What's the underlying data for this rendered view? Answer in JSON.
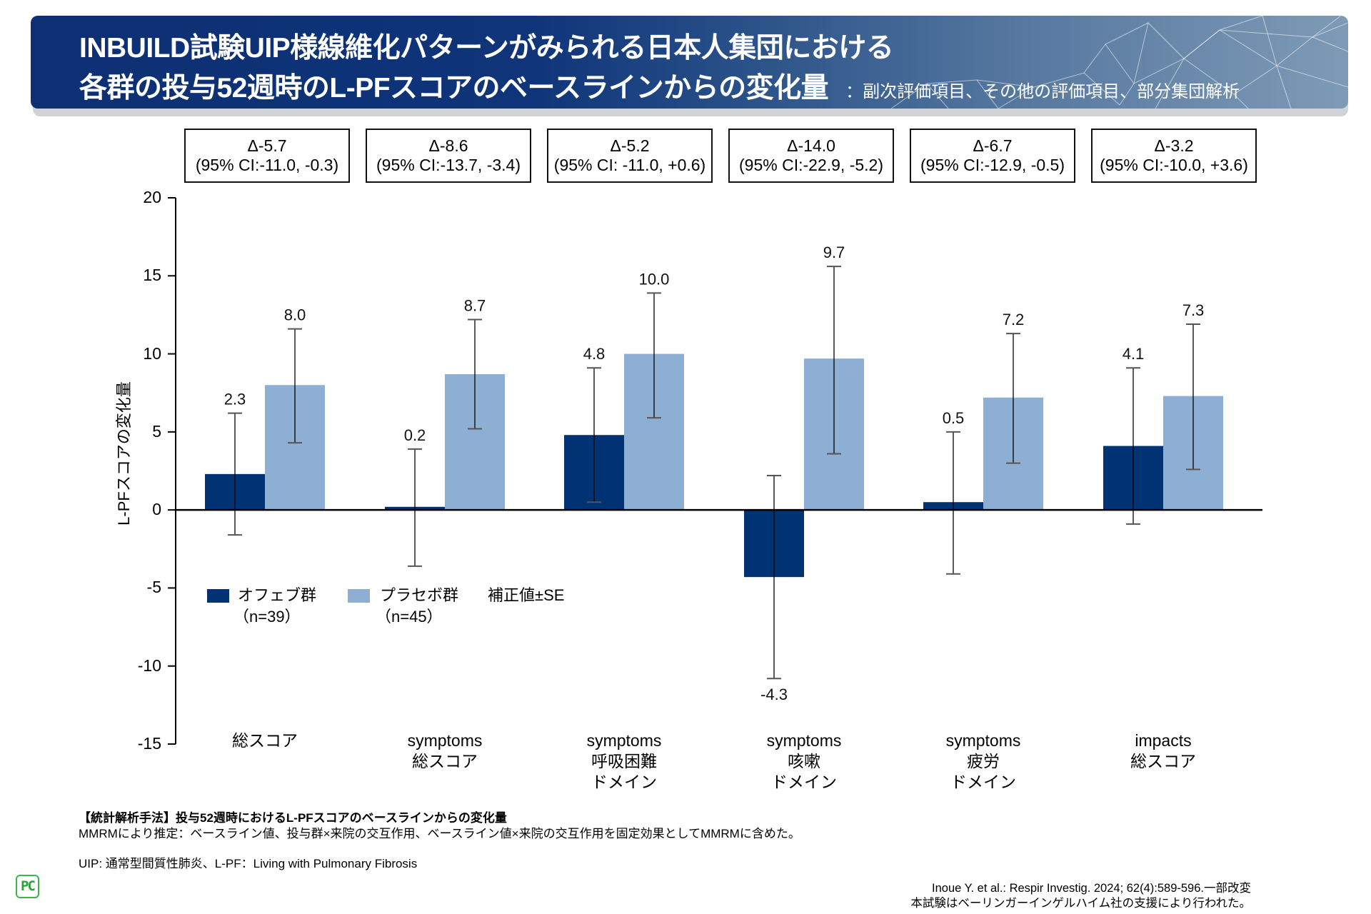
{
  "header": {
    "title_line1": "INBUILD試験UIP様線維化パターンがみられる日本人集団における",
    "title_line2": "各群の投与52週時のL-PFスコアのベースラインからの変化量",
    "subtitle": "：副次評価項目、その他の評価項目、部分集団解析"
  },
  "colors": {
    "banner_dark": "#0d2f73",
    "ofev": "#003274",
    "placebo": "#8eafd4",
    "logo_green": "#3cb44a"
  },
  "deltas": [
    {
      "delta": "Δ-5.7",
      "ci": "(95% CI:-11.0, -0.3)"
    },
    {
      "delta": "Δ-8.6",
      "ci": "(95% CI:-13.7, -3.4)"
    },
    {
      "delta": "Δ-5.2",
      "ci": "(95% CI: -11.0, +0.6)"
    },
    {
      "delta": "Δ-14.0",
      "ci": "(95% CI:-22.9, -5.2)"
    },
    {
      "delta": "Δ-6.7",
      "ci": "(95% CI:-12.9, -0.5)"
    },
    {
      "delta": "Δ-3.2",
      "ci": "(95% CI:-10.0, +3.6)"
    }
  ],
  "chart_data": {
    "type": "bar",
    "title": "",
    "xlabel": "",
    "ylabel": "L-PFスコアの変化量",
    "ylim": [
      -15,
      20
    ],
    "yticks": [
      20,
      15,
      10,
      5,
      0,
      -5,
      -10,
      -15
    ],
    "ytick_labels": [
      "20",
      "15",
      "10",
      "5",
      "0",
      "-5",
      "-10",
      "-15"
    ],
    "grid": false,
    "categories": [
      [
        "総スコア"
      ],
      [
        "symptoms",
        "総スコア"
      ],
      [
        "symptoms",
        "呼吸困難",
        "ドメイン"
      ],
      [
        "symptoms",
        "咳嗽",
        "ドメイン"
      ],
      [
        "symptoms",
        "疲労",
        "ドメイン"
      ],
      [
        "impacts",
        "総スコア"
      ]
    ],
    "series": [
      {
        "name": "オフェブ群",
        "n_label": "（n=39）",
        "values": [
          2.3,
          0.2,
          4.8,
          -4.3,
          0.5,
          4.1
        ],
        "value_labels": [
          "2.3",
          "0.2",
          "4.8",
          "-4.3",
          "0.5",
          "4.1"
        ],
        "err_low": [
          -1.6,
          -3.6,
          0.5,
          -10.8,
          -4.1,
          -0.9
        ],
        "err_high": [
          6.2,
          3.9,
          9.1,
          2.2,
          5.0,
          9.1
        ]
      },
      {
        "name": "プラセボ群",
        "n_label": "（n=45）",
        "values": [
          8.0,
          8.7,
          10.0,
          9.7,
          7.2,
          7.3
        ],
        "value_labels": [
          "8.0",
          "8.7",
          "10.0",
          "9.7",
          "7.2",
          "7.3"
        ],
        "err_low": [
          4.3,
          5.2,
          5.9,
          3.6,
          3.0,
          2.6
        ],
        "err_high": [
          11.6,
          12.2,
          13.9,
          15.6,
          11.3,
          11.9
        ]
      }
    ],
    "error_bar_note": "補正値±SE",
    "legend_position": "lower-left"
  },
  "footer": {
    "method_heading": "【統計解析手法】投与52週時におけるL-PFスコアのベースラインからの変化量",
    "method_text": "MMRMにより推定：ベースライン値、投与群×来院の交互作用、ベースライン値×来院の交互作用を固定効果としてMMRMに含めた。",
    "abbreviations": "UIP: 通常型間質性肺炎、L-PF：Living with Pulmonary Fibrosis",
    "reference": "Inoue Y. et al.: Respir Investig. 2024; 62(4):589-596.一部改変",
    "sponsor": "本試験はベーリンガーインゲルハイム社の支援により行われた。",
    "logo_text": "PC"
  }
}
